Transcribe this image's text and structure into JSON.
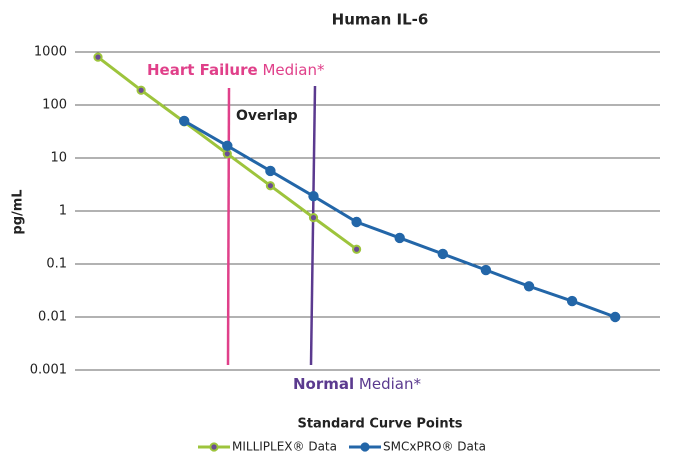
{
  "chart_data": {
    "type": "line",
    "title": "Human IL-6",
    "x_label": "Standard Curve Points",
    "y_label": "pg/mL",
    "categories": [
      null,
      null,
      null,
      null,
      null,
      null,
      null,
      null,
      null,
      null,
      null,
      null,
      null
    ],
    "series": [
      {
        "name": "MILLIPLEX® Data",
        "color": "#9dc43c",
        "marker_color": "#6a4c93",
        "values": [
          800,
          190,
          48,
          12,
          3,
          0.75,
          0.19,
          null,
          null,
          null,
          null,
          null,
          null
        ]
      },
      {
        "name": "SMCxPRO® Data",
        "color": "#2366a8",
        "marker_color": "#2366a8",
        "values": [
          null,
          null,
          50,
          17,
          5.7,
          1.9,
          0.62,
          0.31,
          0.155,
          0.077,
          0.038,
          0.02,
          0.01
        ]
      }
    ],
    "log_y": true,
    "ylim": [
      0.001,
      1000
    ],
    "yticks": [
      0.001,
      0.01,
      0.1,
      1,
      10,
      100,
      1000
    ],
    "grid": true,
    "legend": "bottom",
    "annotations": {
      "heart_failure": {
        "bold": "Heart Failure",
        "text": " Median*",
        "color": "#e0408a"
      },
      "overlap": {
        "text": "Overlap",
        "color": "#a6a6a6"
      },
      "normal": {
        "bold": "Normal",
        "text": " Median*",
        "color": "#5b3a8f"
      }
    }
  }
}
